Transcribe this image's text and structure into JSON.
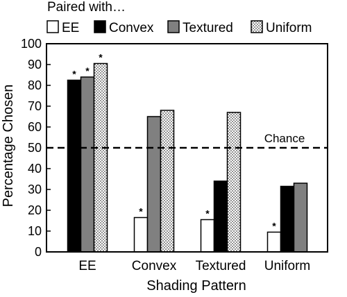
{
  "legend": {
    "title": "Paired with…",
    "items": [
      {
        "label": "EE",
        "color": "#ffffff",
        "pattern": "none"
      },
      {
        "label": "Convex",
        "color": "#000000",
        "pattern": "none"
      },
      {
        "label": "Textured",
        "color": "#808080",
        "pattern": "none"
      },
      {
        "label": "Uniform",
        "color": "#ffffff",
        "pattern": "dots"
      }
    ]
  },
  "chart_data": {
    "type": "bar",
    "xlabel": "Shading Pattern",
    "ylabel": "Percentage Chosen",
    "ylim": [
      0,
      100
    ],
    "yticks": [
      0,
      10,
      20,
      30,
      40,
      50,
      60,
      70,
      80,
      90,
      100
    ],
    "categories": [
      "EE",
      "Convex",
      "Textured",
      "Uniform"
    ],
    "series": [
      {
        "name": "EE",
        "values": [
          null,
          16.5,
          15.5,
          9.5
        ],
        "significant": [
          false,
          true,
          true,
          true
        ]
      },
      {
        "name": "Convex",
        "values": [
          82.5,
          null,
          34,
          31.5
        ],
        "significant": [
          true,
          false,
          false,
          false
        ]
      },
      {
        "name": "Textured",
        "values": [
          84,
          65,
          null,
          33
        ],
        "significant": [
          true,
          false,
          false,
          false
        ]
      },
      {
        "name": "Uniform",
        "values": [
          90.5,
          68,
          67,
          null
        ],
        "significant": [
          true,
          false,
          false,
          false
        ]
      }
    ],
    "reference_line": {
      "value": 50,
      "label": "Chance",
      "style": "dashed"
    },
    "significance_marker": "*",
    "grid": false
  }
}
